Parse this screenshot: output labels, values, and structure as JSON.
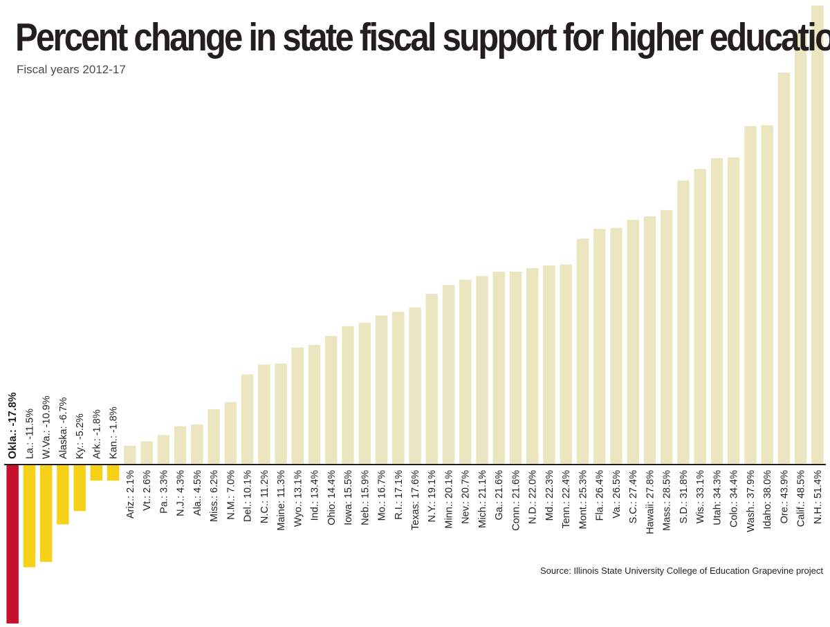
{
  "title": "Percent change in state fiscal support for higher education",
  "subtitle": "Fiscal years 2012-17",
  "source": "Source: Illinois State University College of Education Grapevine project",
  "colors": {
    "highlight": "#c8102e",
    "negative": "#f7d117",
    "positive": "#ebe6bf",
    "axis": "#231f20",
    "text": "#231f20"
  },
  "chart_data": {
    "type": "bar",
    "title": "Percent change in state fiscal support for higher education",
    "subtitle": "Fiscal years 2012-17",
    "ylim": [
      -17.8,
      51.4
    ],
    "grid": false,
    "legend": "none",
    "highlight": "Okla.",
    "categories": [
      "Okla.",
      "La.",
      "W.Va.",
      "Alaska",
      "Ky.",
      "Ark.",
      "Kan.",
      "Ariz.",
      "Vt.",
      "Pa.",
      "N.J.",
      "Ala.",
      "Miss.",
      "N.M.",
      "Del.",
      "N.C.",
      "Maine",
      "Wyo.",
      "Ind.",
      "Ohio",
      "Iowa",
      "Neb.",
      "Mo.",
      "R.I.",
      "Texas",
      "N.Y.",
      "Minn.",
      "Nev.",
      "Mich.",
      "Ga.",
      "Conn.",
      "N.D.",
      "Md.",
      "Tenn.",
      "Mont.",
      "Fla.",
      "Va.",
      "S.C.",
      "Hawaii",
      "Mass.",
      "S.D.",
      "Wis.",
      "Utah",
      "Colo.",
      "Wash.",
      "Idaho",
      "Ore.",
      "Calif.",
      "N.H."
    ],
    "values": [
      -17.8,
      -11.5,
      -10.9,
      -6.7,
      -5.2,
      -1.8,
      -1.8,
      2.1,
      2.6,
      3.3,
      4.3,
      4.5,
      6.2,
      7.0,
      10.1,
      11.2,
      11.3,
      13.1,
      13.4,
      14.4,
      15.5,
      15.9,
      16.7,
      17.1,
      17.6,
      19.1,
      20.1,
      20.7,
      21.1,
      21.6,
      21.6,
      22.0,
      22.3,
      22.4,
      25.3,
      26.4,
      26.5,
      27.4,
      27.8,
      28.5,
      31.8,
      33.1,
      34.3,
      34.4,
      37.9,
      38.0,
      43.9,
      48.5,
      51.4
    ],
    "labels": [
      "Okla.: -17.8%",
      "La.: -11.5%",
      "W.Va.: -10.9%",
      "Alaska: -6.7%",
      "Ky.: -5.2%",
      "Ark.: -1.8%",
      "Kan.: -1.8%",
      "Ariz.: 2.1%",
      "Vt.: 2.6%",
      "Pa.: 3.3%",
      "N.J.: 4.3%",
      "Ala.: 4.5%",
      "Miss.: 6.2%",
      "N.M.: 7.0%",
      "Del.: 10.1%",
      "N.C.: 11.2%",
      "Maine: 11.3%",
      "Wyo.: 13.1%",
      "Ind.: 13.4%",
      "Ohio: 14.4%",
      "Iowa: 15.5%",
      "Neb.: 15.9%",
      "Mo.: 16.7%",
      "R.I.: 17.1%",
      "Texas: 17.6%",
      "N.Y.: 19.1%",
      "Minn.: 20.1%",
      "Nev.: 20.7%",
      "Mich.: 21.1%",
      "Ga.: 21.6%",
      "Conn.: 21.6%",
      "N.D.: 22.0%",
      "Md.: 22.3%",
      "Tenn.: 22.4%",
      "Mont.: 25.3%",
      "Fla.: 26.4%",
      "Va.: 26.5%",
      "S.C.: 27.4%",
      "Hawaii: 27.8%",
      "Mass.: 28.5%",
      "S.D.: 31.8%",
      "Wis.: 33.1%",
      "Utah: 34.3%",
      "Colo.: 34.4%",
      "Wash.: 37.9%",
      "Idaho: 38.0%",
      "Ore.: 43.9%",
      "Calif.: 48.5%",
      "N.H.: 51.4%"
    ]
  }
}
